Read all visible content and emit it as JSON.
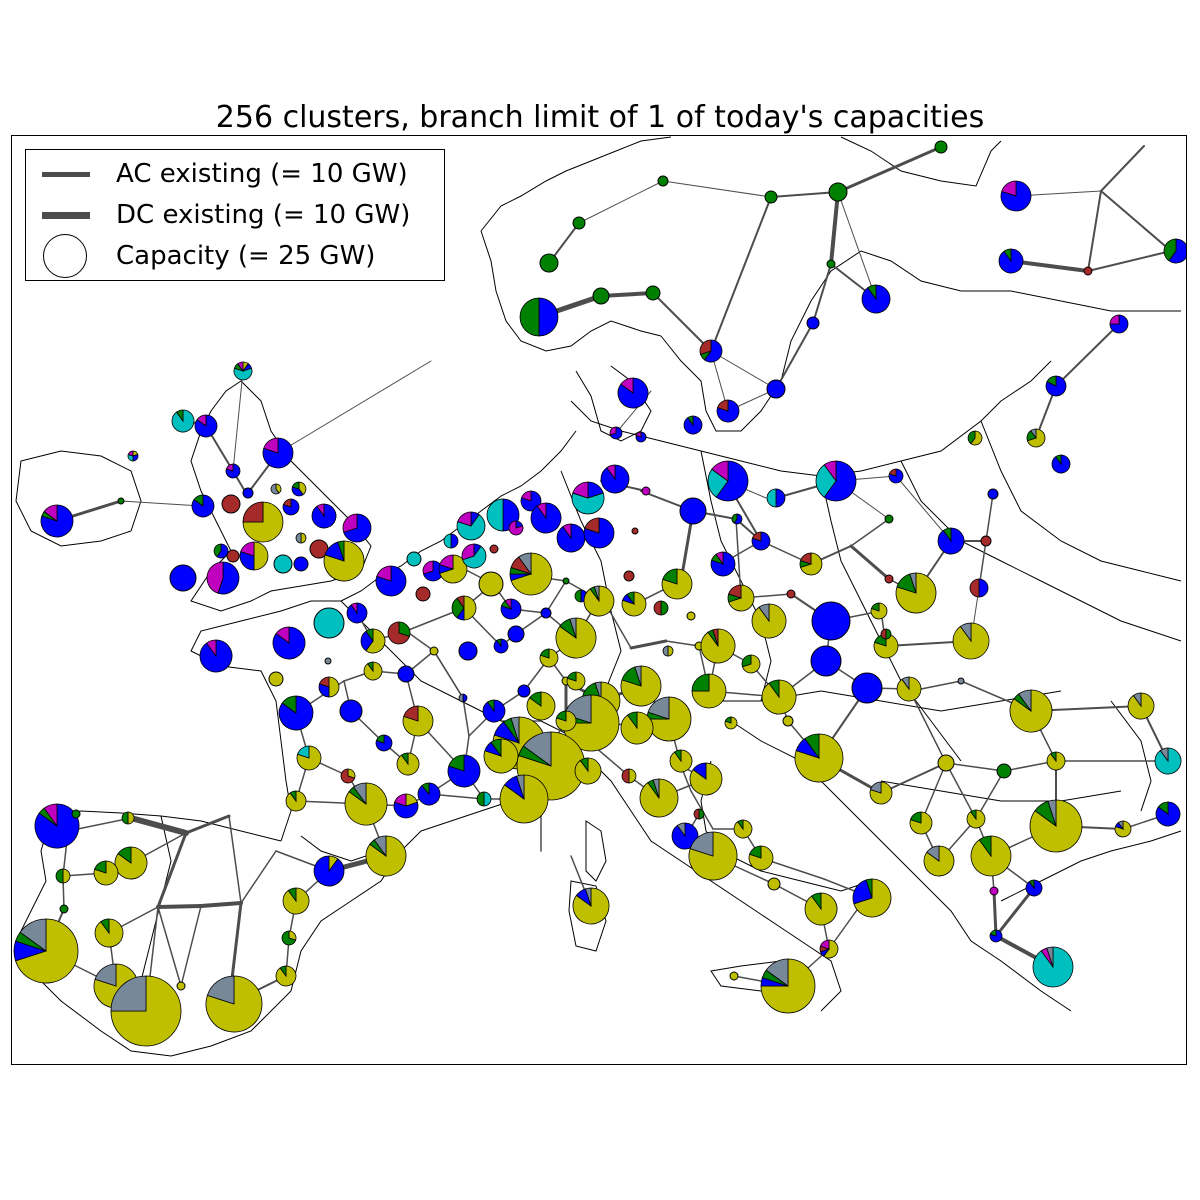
{
  "title": "256 clusters, branch limit of 1 of today's capacities",
  "legend": {
    "ac_label": "AC existing (= 10 GW)",
    "dc_label": "DC existing (= 10 GW)",
    "capacity_label": "Capacity (= 25 GW)"
  },
  "colors": {
    "solar": "#bfbf00",
    "wind_onshore": "#0000ff",
    "wind_offshore": "#00bfbf",
    "hydro": "#008000",
    "gas": "#a52a2a",
    "other": "#bf00bf",
    "storage": "#778899",
    "line": "#4d4d4d",
    "coast": "#000000"
  }
}
